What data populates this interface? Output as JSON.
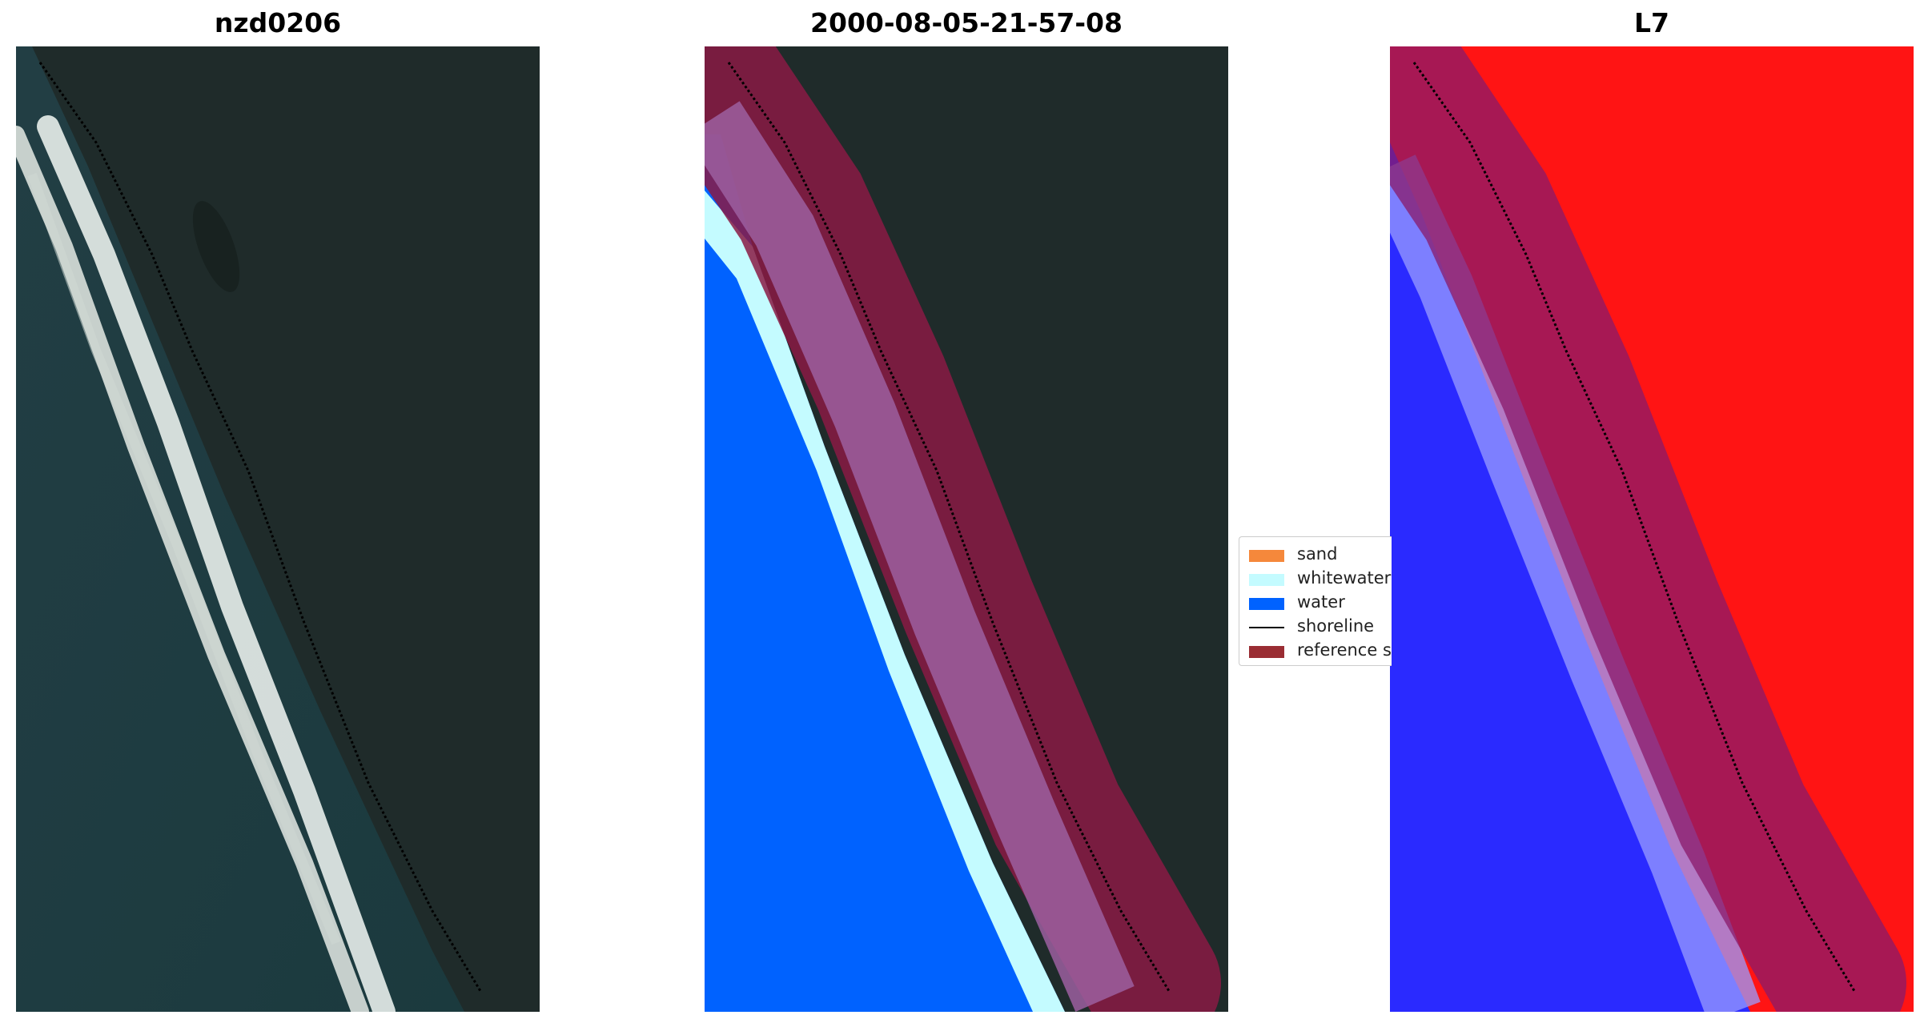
{
  "panels": [
    {
      "title": "nzd0206",
      "type": "rgb-composite"
    },
    {
      "title": "2000-08-05-21-57-08",
      "type": "classified"
    },
    {
      "title": "L7",
      "type": "index-map"
    }
  ],
  "legend": {
    "items": [
      {
        "label": "sand",
        "kind": "patch",
        "color": "#f5883b"
      },
      {
        "label": "whitewater",
        "kind": "patch",
        "color": "#c4fbff"
      },
      {
        "label": "water",
        "kind": "patch",
        "color": "#0062ff"
      },
      {
        "label": "shoreline",
        "kind": "line",
        "color": "#000000"
      },
      {
        "label": "reference sh",
        "kind": "patch",
        "color": "#9a2d33"
      }
    ]
  },
  "colors": {
    "land_dark": "#1f2b2a",
    "ocean": "#1f3b42",
    "surf": "#dfe6e3",
    "reference_buffer": "#8a1a44",
    "index_positive": "#ff1010",
    "index_negative": "#2828ff"
  }
}
